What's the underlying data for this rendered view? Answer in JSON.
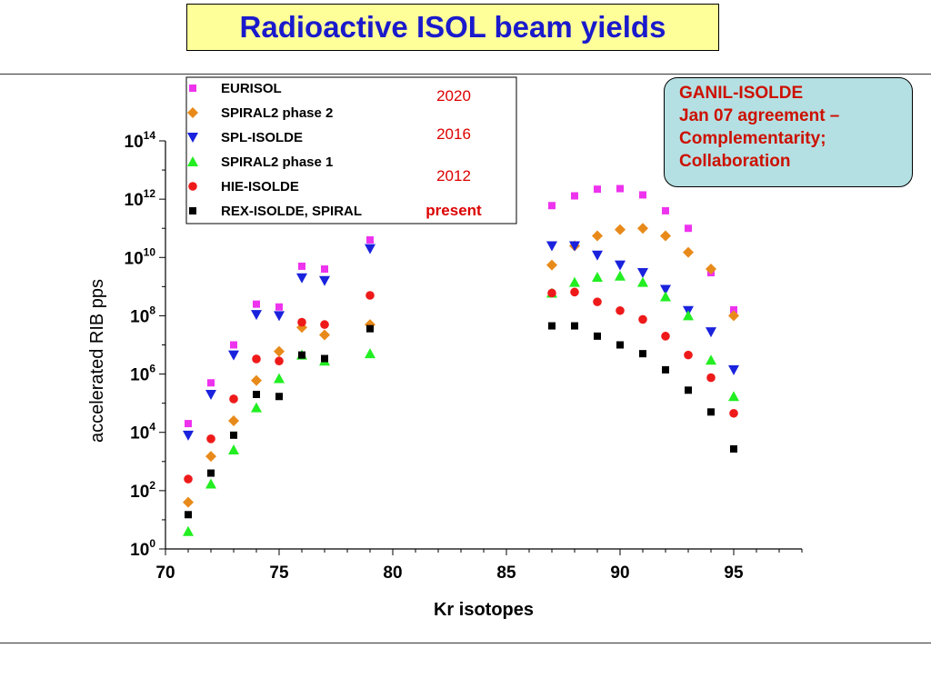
{
  "title": "Radioactive ISOL beam yields",
  "callout": {
    "lines": [
      "GANIL-ISOLDE",
      "Jan 07 agreement –",
      "Complementarity;",
      "Collaboration"
    ],
    "text_color": "#cc1100",
    "bg_color": "#b4e0e3"
  },
  "chart_data": {
    "type": "scatter",
    "title": "",
    "xlabel": "Kr isotopes",
    "ylabel": "accelerated RIB pps",
    "xlim": [
      70,
      98
    ],
    "y_log_exponent_range": [
      0,
      14
    ],
    "y_scale": "log",
    "x_ticks": [
      "70",
      "75",
      "80",
      "85",
      "90",
      "95"
    ],
    "y_ticks": [
      {
        "base": "10",
        "exp": "0"
      },
      {
        "base": "10",
        "exp": "2"
      },
      {
        "base": "10",
        "exp": "4"
      },
      {
        "base": "10",
        "exp": "6"
      },
      {
        "base": "10",
        "exp": "8"
      },
      {
        "base": "10",
        "exp": "10"
      },
      {
        "base": "10",
        "exp": "12"
      },
      {
        "base": "10",
        "exp": "14"
      }
    ],
    "legend_position": "top-left",
    "series": [
      {
        "name": "EURISOL",
        "year": "2020",
        "marker": "square",
        "color": "#ee33ee",
        "points": [
          [
            71,
            20000.0
          ],
          [
            72,
            500000.0
          ],
          [
            73,
            10000000.0
          ],
          [
            74,
            250000000.0
          ],
          [
            75,
            200000000.0
          ],
          [
            76,
            5000000000.0
          ],
          [
            77,
            4000000000.0
          ],
          [
            79,
            40000000000.0
          ],
          [
            87,
            600000000000.0
          ],
          [
            88,
            1300000000000.0
          ],
          [
            89,
            2200000000000.0
          ],
          [
            90,
            2300000000000.0
          ],
          [
            91,
            1400000000000.0
          ],
          [
            92,
            400000000000.0
          ],
          [
            93,
            100000000000.0
          ],
          [
            94,
            3000000000.0
          ],
          [
            95,
            160000000.0
          ]
        ]
      },
      {
        "name": "SPIRAL2 phase 2",
        "year": "",
        "marker": "diamond",
        "color": "#e88a1a",
        "points": [
          [
            71,
            40.0
          ],
          [
            72,
            1500.0
          ],
          [
            73,
            25000.0
          ],
          [
            74,
            600000.0
          ],
          [
            75,
            6000000.0
          ],
          [
            76,
            40000000.0
          ],
          [
            77,
            22000000.0
          ],
          [
            79,
            50000000.0
          ],
          [
            87,
            5500000000.0
          ],
          [
            88,
            25000000000.0
          ],
          [
            89,
            55000000000.0
          ],
          [
            90,
            90000000000.0
          ],
          [
            91,
            100000000000.0
          ],
          [
            92,
            55000000000.0
          ],
          [
            93,
            15000000000.0
          ],
          [
            94,
            4000000000.0
          ],
          [
            95,
            100000000.0
          ]
        ]
      },
      {
        "name": "SPL-ISOLDE",
        "year": "2016",
        "marker": "triangle-down",
        "color": "#1a22dd",
        "points": [
          [
            71,
            8000.0
          ],
          [
            72,
            200000.0
          ],
          [
            73,
            4500000.0
          ],
          [
            74,
            110000000.0
          ],
          [
            75,
            100000000.0
          ],
          [
            76,
            2000000000.0
          ],
          [
            77,
            1600000000.0
          ],
          [
            79,
            20000000000.0
          ],
          [
            87,
            25000000000.0
          ],
          [
            88,
            25000000000.0
          ],
          [
            89,
            12000000000.0
          ],
          [
            90,
            5500000000.0
          ],
          [
            91,
            3000000000.0
          ],
          [
            92,
            800000000.0
          ],
          [
            93,
            150000000.0
          ],
          [
            94,
            28000000.0
          ],
          [
            95,
            1400000.0
          ]
        ]
      },
      {
        "name": "SPIRAL2 phase 1",
        "year": "",
        "marker": "triangle-up",
        "color": "#22ee22",
        "points": [
          [
            71,
            4
          ],
          [
            72,
            170.0
          ],
          [
            73,
            2500.0
          ],
          [
            74,
            70000.0
          ],
          [
            75,
            700000.0
          ],
          [
            76,
            4500000.0
          ],
          [
            77,
            2800000.0
          ],
          [
            79,
            5000000.0
          ],
          [
            87,
            600000000.0
          ],
          [
            88,
            1400000000.0
          ],
          [
            89,
            2100000000.0
          ],
          [
            90,
            2300000000.0
          ],
          [
            91,
            1400000000.0
          ],
          [
            92,
            450000000.0
          ],
          [
            93,
            100000000.0
          ],
          [
            94,
            3000000.0
          ],
          [
            95,
            170000.0
          ]
        ]
      },
      {
        "name": "HIE-ISOLDE",
        "year": "2012",
        "marker": "circle",
        "color": "#ee1a1a",
        "points": [
          [
            71,
            250.0
          ],
          [
            72,
            6000.0
          ],
          [
            73,
            140000.0
          ],
          [
            74,
            3300000.0
          ],
          [
            75,
            2800000.0
          ],
          [
            76,
            60000000.0
          ],
          [
            77,
            50000000.0
          ],
          [
            79,
            500000000.0
          ],
          [
            87,
            600000000.0
          ],
          [
            88,
            650000000.0
          ],
          [
            89,
            300000000.0
          ],
          [
            90,
            150000000.0
          ],
          [
            91,
            75000000.0
          ],
          [
            92,
            20000000.0
          ],
          [
            93,
            4500000.0
          ],
          [
            94,
            750000.0
          ],
          [
            95,
            45000.0
          ]
        ]
      },
      {
        "name": "REX-ISOLDE, SPIRAL",
        "year": "present",
        "marker": "square",
        "color": "#000000",
        "points": [
          [
            71,
            15.0
          ],
          [
            72,
            400.0
          ],
          [
            73,
            8000.0
          ],
          [
            74,
            200000.0
          ],
          [
            75,
            170000.0
          ],
          [
            76,
            4500000.0
          ],
          [
            77,
            3400000.0
          ],
          [
            79,
            36000000.0
          ],
          [
            87,
            45000000.0
          ],
          [
            88,
            45000000.0
          ],
          [
            89,
            20000000.0
          ],
          [
            90,
            10000000.0
          ],
          [
            91,
            5000000.0
          ],
          [
            92,
            1400000.0
          ],
          [
            93,
            280000.0
          ],
          [
            94,
            50000.0
          ],
          [
            95,
            2700.0
          ]
        ]
      }
    ]
  }
}
